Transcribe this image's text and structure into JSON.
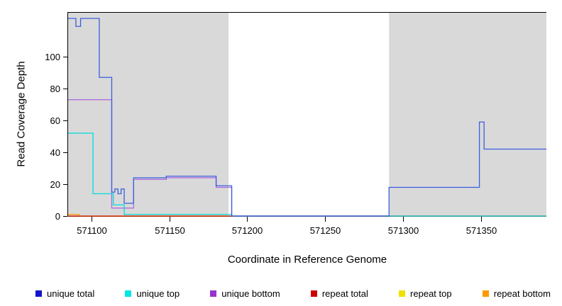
{
  "chart_data": {
    "type": "line",
    "step": true,
    "title": "",
    "xlabel": "Coordinate in Reference Genome",
    "ylabel": "Read Coverage Depth",
    "xlim": [
      571085,
      571392
    ],
    "ylim": [
      0,
      128
    ],
    "x_ticks": [
      571100,
      571150,
      571200,
      571250,
      571300,
      571350
    ],
    "y_ticks": [
      0,
      20,
      40,
      60,
      80,
      100
    ],
    "grid": false,
    "legend_position": "bottom",
    "background_color": "#ffffff",
    "shaded_regions": [
      {
        "x0": 571085,
        "x1": 571188,
        "color": "#D9D9D9"
      },
      {
        "x0": 571291,
        "x1": 571392,
        "color": "#D9D9D9"
      }
    ],
    "series": [
      {
        "name": "unique total",
        "color": "#1414CC",
        "line_color": "#3A5FDF",
        "points": [
          [
            571085,
            124
          ],
          [
            571090,
            119
          ],
          [
            571093,
            124
          ],
          [
            571105,
            87
          ],
          [
            571113,
            15
          ],
          [
            571115,
            17
          ],
          [
            571117,
            14
          ],
          [
            571119,
            17
          ],
          [
            571121,
            8
          ],
          [
            571127,
            24
          ],
          [
            571148,
            25
          ],
          [
            571180,
            19
          ],
          [
            571190,
            0
          ],
          [
            571291,
            18
          ],
          [
            571349,
            59
          ],
          [
            571352,
            42
          ]
        ],
        "extend": true
      },
      {
        "name": "unique top",
        "color": "#00E5E5",
        "line_color": "#00DCDC",
        "points": [
          [
            571085,
            52
          ],
          [
            571101,
            14
          ],
          [
            571114,
            7
          ],
          [
            571121,
            1
          ],
          [
            571190,
            0
          ]
        ],
        "extend": true
      },
      {
        "name": "unique bottom",
        "color": "#9933CC",
        "line_color": "#AA66DD",
        "points": [
          [
            571085,
            73
          ],
          [
            571113,
            5
          ],
          [
            571127,
            23
          ],
          [
            571148,
            24
          ],
          [
            571180,
            18
          ],
          [
            571190,
            0
          ]
        ],
        "extend": true
      },
      {
        "name": "repeat total",
        "color": "#CC0000",
        "line_color": "#DD2222",
        "points": [
          [
            571085,
            0
          ]
        ],
        "extend": true
      },
      {
        "name": "repeat top",
        "color": "#F0E000",
        "line_color": "#F0E000",
        "points": [
          [
            571085,
            0
          ]
        ],
        "extend": true
      },
      {
        "name": "repeat bottom",
        "color": "#FF9900",
        "line_color": "#FF9900",
        "points": [
          [
            571085,
            1
          ],
          [
            571092,
            0
          ]
        ],
        "extend": true
      }
    ]
  }
}
